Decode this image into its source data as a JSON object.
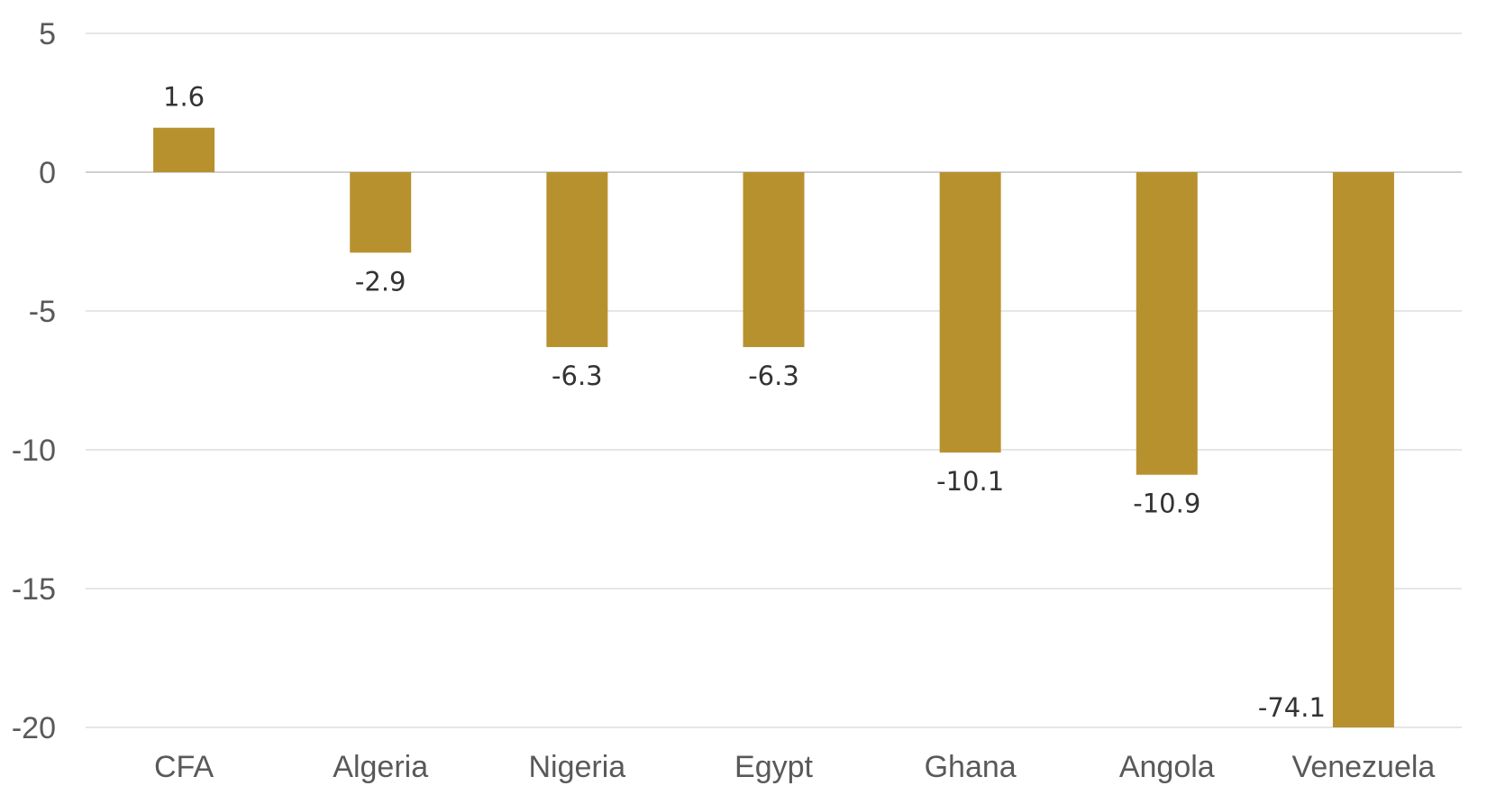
{
  "chart_data": {
    "type": "bar",
    "categories": [
      "CFA",
      "Algeria",
      "Nigeria",
      "Egypt",
      "Ghana",
      "Angola",
      "Venezuela"
    ],
    "values": [
      1.6,
      -2.9,
      -6.3,
      -6.3,
      -10.1,
      -10.9,
      -74.1
    ],
    "data_labels": [
      "1.6",
      "-2.9",
      "-6.3",
      "-6.3",
      "-10.1",
      "-10.9",
      "-74.1"
    ],
    "y_ticks": [
      5,
      0,
      -5,
      -10,
      -15,
      -20
    ],
    "y_tick_labels": [
      "5",
      "0",
      "-5",
      "-10",
      "-15",
      "-20"
    ],
    "ylim": [
      -20,
      5
    ],
    "clipped_at_axis_min": true,
    "title": "",
    "xlabel": "",
    "ylabel": "",
    "grid": true,
    "legend": "none",
    "bar_color": "#B8912F"
  }
}
